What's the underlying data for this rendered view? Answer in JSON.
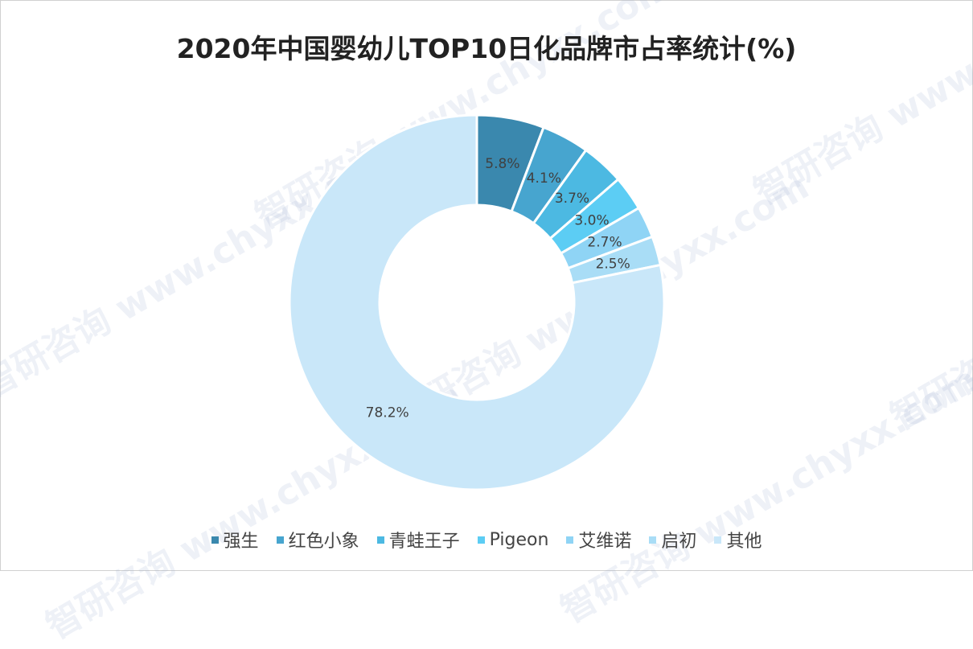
{
  "chart_data": {
    "type": "pie",
    "variant": "donut",
    "title": "2020年中国婴幼儿TOP10日化品牌市占率统计(%)",
    "categories": [
      "强生",
      "红色小象",
      "青蛙王子",
      "Pigeon",
      "艾维诺",
      "启初",
      "其他"
    ],
    "values": [
      5.8,
      4.1,
      3.7,
      3.0,
      2.7,
      2.5,
      78.2
    ],
    "data_labels": [
      "5.8%",
      "4.1%",
      "3.7%",
      "3.0%",
      "2.7%",
      "2.5%",
      "78.2%"
    ],
    "colors": [
      "#3a88ae",
      "#47a5cf",
      "#4cb9e2",
      "#5ccdf4",
      "#8fd4f5",
      "#a9ddf6",
      "#c9e7f9"
    ],
    "legend_position": "bottom"
  },
  "watermark": "智研咨询 www.chyxx.com"
}
